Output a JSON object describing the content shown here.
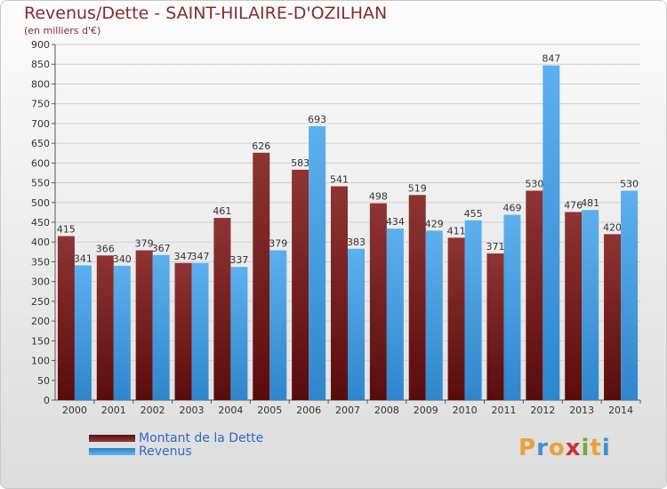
{
  "header": {
    "title": "Revenus/Dette - SAINT-HILAIRE-D'OZILHAN",
    "subtitle": "(en milliers d'€)"
  },
  "chart_data": {
    "type": "bar",
    "categories": [
      "2000",
      "2001",
      "2002",
      "2003",
      "2004",
      "2005",
      "2006",
      "2007",
      "2008",
      "2009",
      "2010",
      "2011",
      "2012",
      "2013",
      "2014"
    ],
    "series": [
      {
        "name": "Montant de la Dette",
        "values": [
          415,
          366,
          379,
          347,
          461,
          626,
          583,
          541,
          498,
          519,
          411,
          371,
          530,
          476,
          420
        ],
        "color": "#7a2020"
      },
      {
        "name": "Revenus",
        "values": [
          341,
          340,
          367,
          347,
          337,
          379,
          693,
          383,
          434,
          429,
          455,
          469,
          847,
          481,
          530
        ],
        "color": "#4ea3e6"
      }
    ],
    "ylim": [
      0,
      900
    ],
    "yticks": [
      0,
      50,
      100,
      150,
      200,
      250,
      300,
      350,
      400,
      450,
      500,
      550,
      600,
      650,
      700,
      750,
      800,
      850,
      900
    ],
    "grid": true,
    "legend": "bottom-left"
  },
  "logo": {
    "letters": [
      "P",
      "r",
      "o",
      "x",
      "i",
      "t",
      "i"
    ],
    "colors": [
      "#e8a23a",
      "#3d8fd6",
      "#e8a23a",
      "#cc3333",
      "#7aa83a",
      "#e8a23a",
      "#3d8fd6"
    ]
  }
}
